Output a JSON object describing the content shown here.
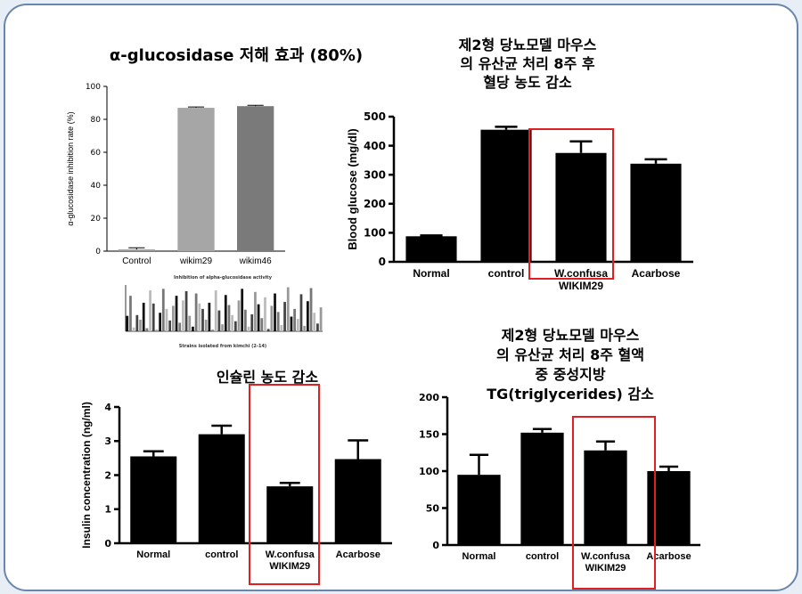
{
  "panel_titles": {
    "glucosidase": "α-glucosidase 저해 효과 (80%)",
    "glucose": [
      "제2형 당뇨모델 마우스",
      "의 유산균 처리 8주 후",
      "혈당 농도 감소"
    ],
    "insulin": "인슐린 농도 감소",
    "tg": [
      "제2형 당뇨모델 마우스",
      "의 유산균 처리 8주 혈액",
      "중 중성지방",
      "TG(triglycerides) 감소"
    ]
  },
  "chart_data": [
    {
      "type": "bar",
      "title": "",
      "xlabel": "",
      "ylabel": "α-glucosidase inhibition rate (%)",
      "ylim": [
        0,
        100
      ],
      "yticks": [
        0,
        20,
        40,
        60,
        80,
        100
      ],
      "categories": [
        "Control",
        "wikim29",
        "wikim46"
      ],
      "values": [
        1,
        87,
        88
      ],
      "errors": [
        1,
        0.5,
        0.5
      ],
      "colors": [
        "#9a9a9a",
        "#a6a6a6",
        "#7a7a7a"
      ]
    },
    {
      "type": "bar",
      "title": "",
      "xlabel": "Strains isolated from kimchi (2-14)",
      "ylabel": "",
      "subtitle": "Inhibition of alpha-glucosidase activity",
      "values": [
        20,
        46,
        5,
        21,
        15,
        37,
        4,
        53,
        36,
        2,
        24,
        55,
        29,
        14,
        33,
        46,
        11,
        40,
        52,
        20,
        6,
        49,
        36,
        29,
        15,
        37,
        2,
        53,
        27,
        9,
        47,
        34,
        21,
        13,
        40,
        55,
        28,
        6,
        22,
        51,
        35,
        17,
        44,
        3,
        33,
        49,
        25,
        8,
        38,
        57,
        19,
        29,
        16,
        48,
        7,
        39,
        56,
        24,
        10,
        31
      ]
    },
    {
      "type": "bar",
      "title": "",
      "xlabel": "",
      "ylabel": "Blood glucose (mg/dl)",
      "ylim": [
        0,
        500
      ],
      "yticks": [
        0,
        100,
        200,
        300,
        400,
        500
      ],
      "categories": [
        "Normal",
        "control",
        "W.confusa\nWIKIM29",
        "Acarbose"
      ],
      "values": [
        88,
        455,
        375,
        338
      ],
      "errors": [
        3,
        10,
        40,
        15
      ],
      "highlight": 2
    },
    {
      "type": "bar",
      "title": "",
      "xlabel": "",
      "ylabel": "Insulin concentration (ng/ml)",
      "ylim": [
        0,
        4
      ],
      "yticks": [
        0,
        1,
        2,
        3,
        4
      ],
      "categories": [
        "Normal",
        "control",
        "W.confusa\nWIKIM29",
        "Acarbose"
      ],
      "values": [
        2.55,
        3.2,
        1.67,
        2.47
      ],
      "errors": [
        0.15,
        0.25,
        0.1,
        0.55
      ],
      "highlight": 2
    },
    {
      "type": "bar",
      "title": "",
      "xlabel": "",
      "ylabel": "",
      "ylim": [
        0,
        200
      ],
      "yticks": [
        0,
        50,
        100,
        150,
        200
      ],
      "yticklabels": [
        "0",
        "50",
        "100",
        "150",
        "200"
      ],
      "categories": [
        "Normal",
        "control",
        "W.confusa\nWIKIM29",
        "Acarbose"
      ],
      "values": [
        95,
        152,
        128,
        100
      ],
      "errors": [
        27,
        5,
        12,
        6
      ],
      "highlight": 2
    }
  ],
  "colors": {
    "frame": "#6b86ad",
    "highlight": "#e02020",
    "bar": "#000000"
  }
}
